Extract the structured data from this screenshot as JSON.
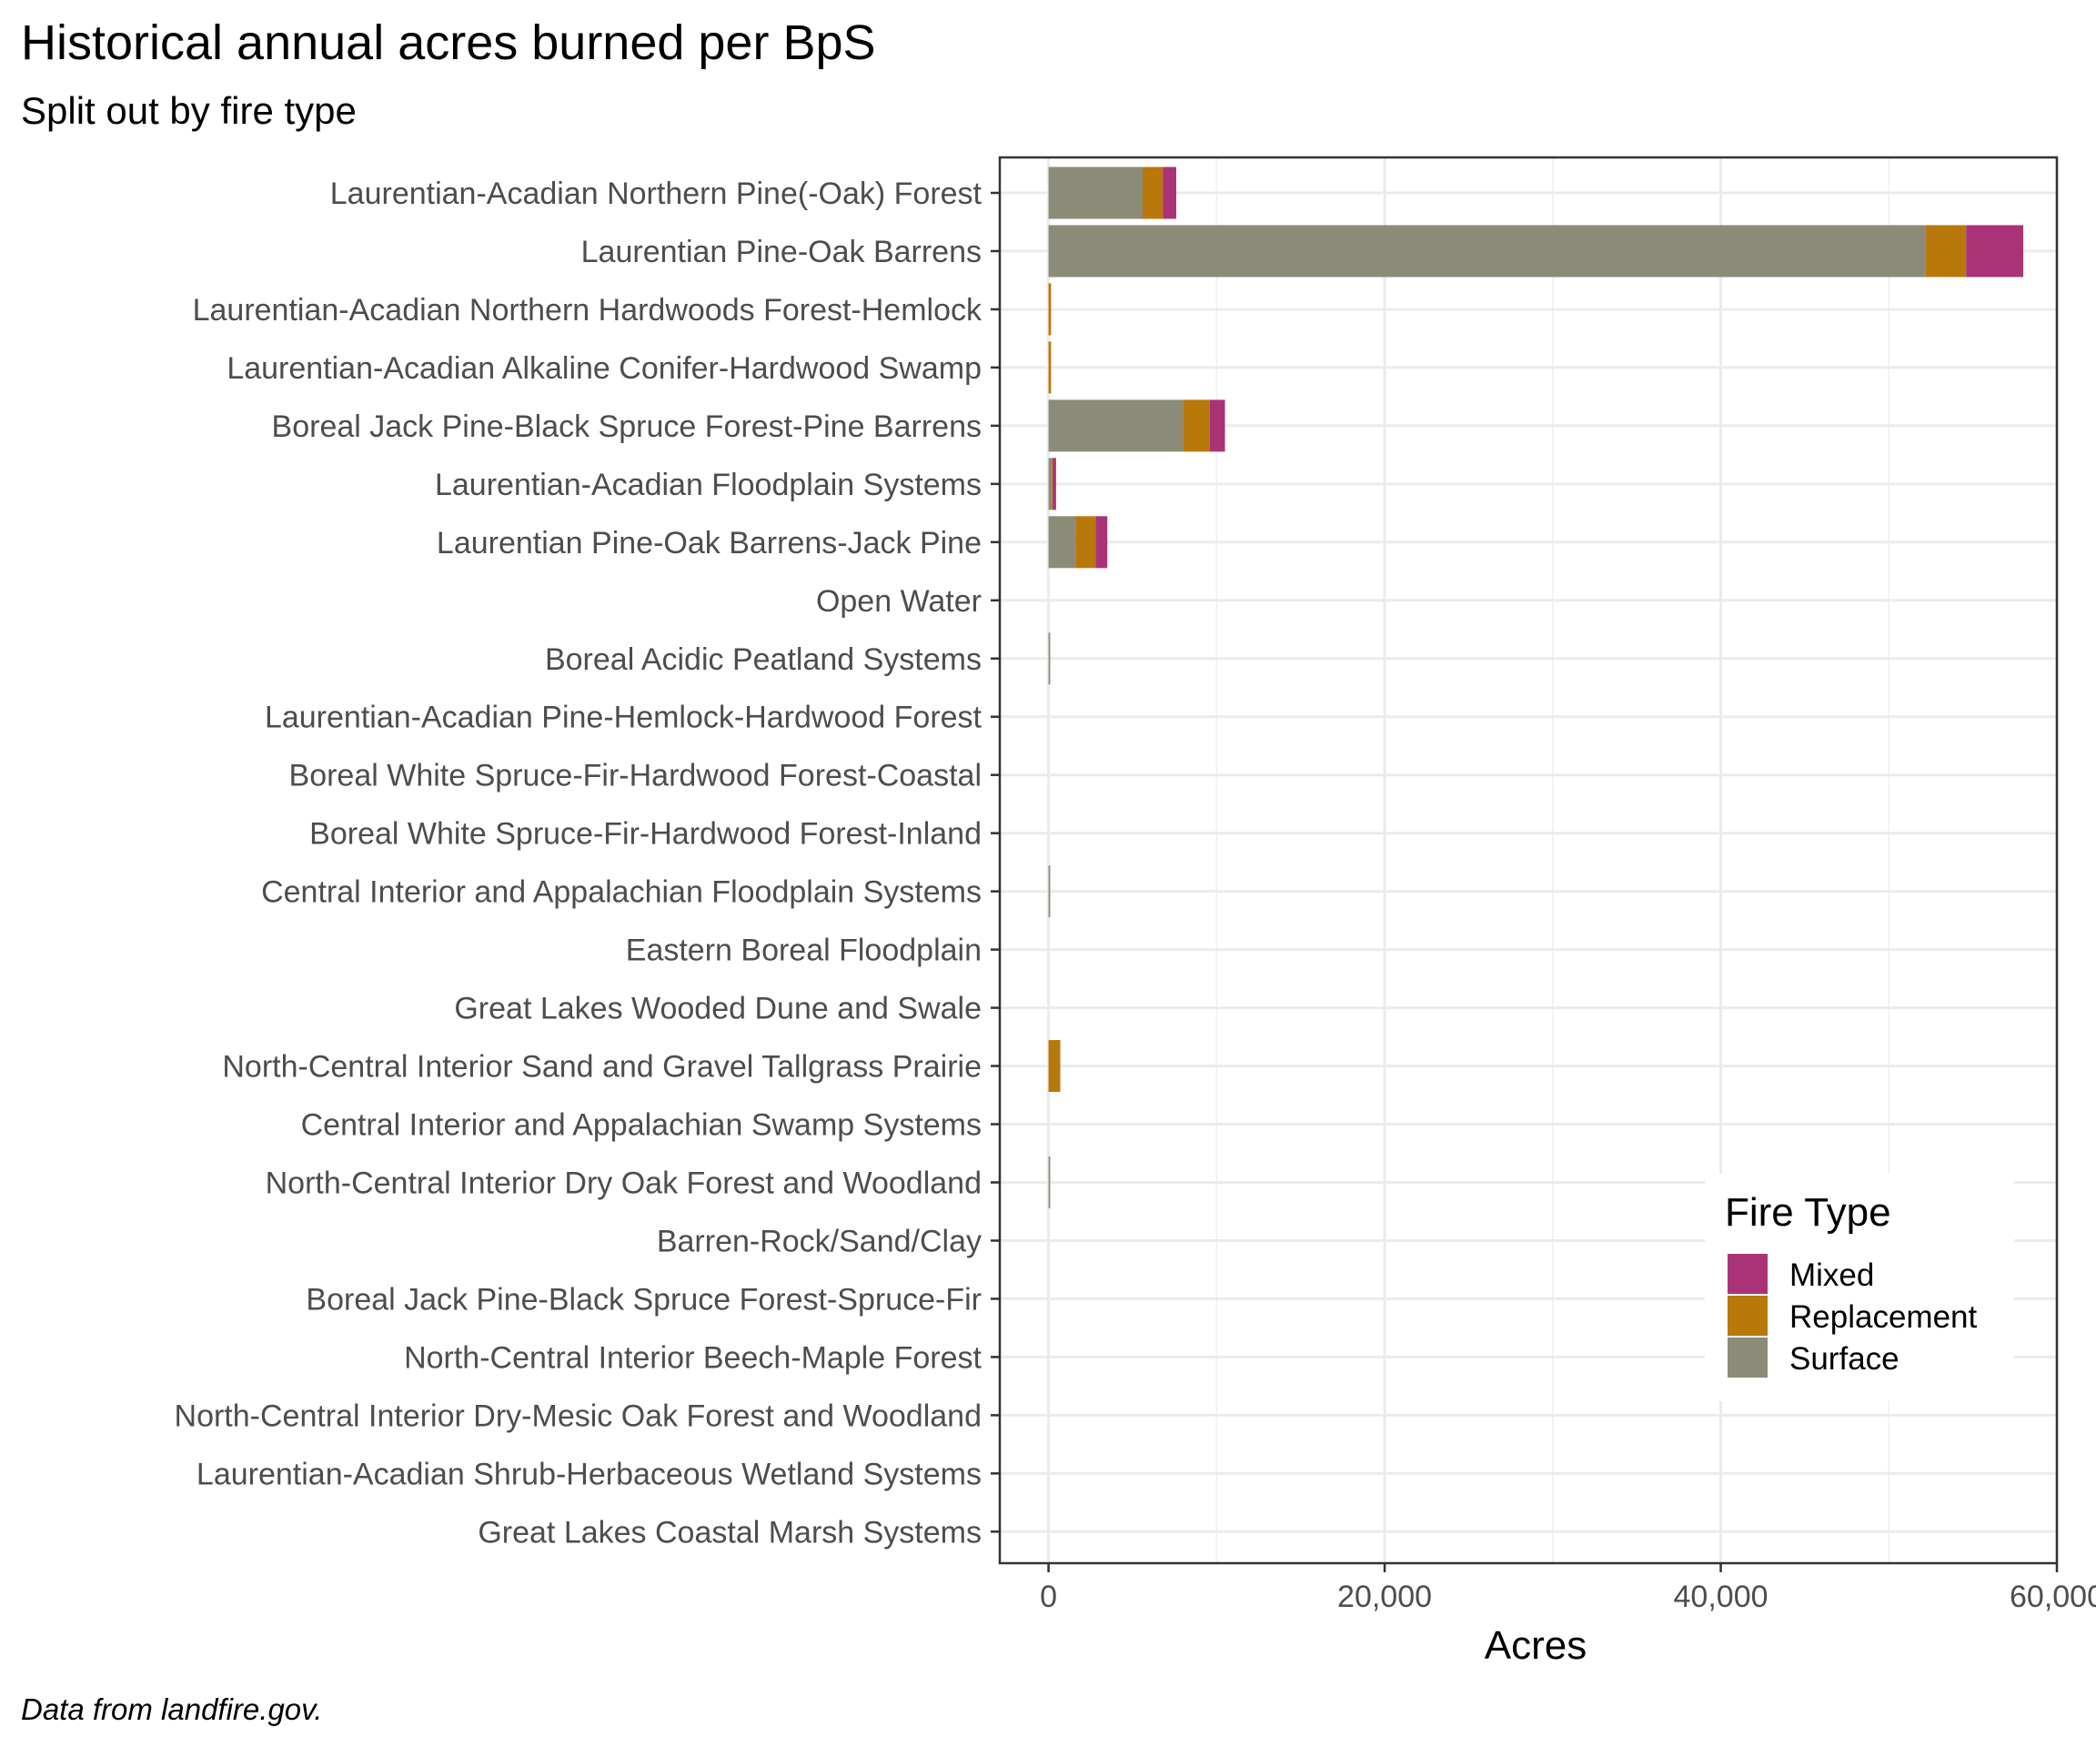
{
  "chart_data": {
    "type": "bar",
    "orientation": "horizontal",
    "stacked": true,
    "title": "Historical annual acres burned per BpS",
    "subtitle": "Split out by fire type",
    "caption": "Data from landfire.gov.",
    "xlabel": "Acres",
    "ylabel": "",
    "xlim": [
      -2900,
      60000
    ],
    "x_ticks": [
      0,
      20000,
      40000,
      60000
    ],
    "x_tick_labels": [
      "0",
      "20,000",
      "40,000",
      "60,000"
    ],
    "grid": true,
    "legend": {
      "title": "Fire Type",
      "placement": "bottom-right"
    },
    "categories": [
      "Laurentian-Acadian Northern Pine(-Oak) Forest",
      "Laurentian Pine-Oak Barrens",
      "Laurentian-Acadian Northern Hardwoods Forest-Hemlock",
      "Laurentian-Acadian Alkaline Conifer-Hardwood Swamp",
      "Boreal Jack Pine-Black Spruce Forest-Pine Barrens",
      "Laurentian-Acadian Floodplain Systems",
      "Laurentian Pine-Oak Barrens-Jack Pine",
      "Open Water",
      "Boreal Acidic Peatland Systems",
      "Laurentian-Acadian Pine-Hemlock-Hardwood Forest",
      "Boreal White Spruce-Fir-Hardwood Forest-Coastal",
      "Boreal White Spruce-Fir-Hardwood Forest-Inland",
      "Central Interior and Appalachian Floodplain Systems",
      "Eastern Boreal Floodplain",
      "Great Lakes Wooded Dune and Swale",
      "North-Central Interior Sand and Gravel Tallgrass Prairie",
      "Central Interior and Appalachian Swamp Systems",
      "North-Central Interior Dry Oak Forest and Woodland",
      "Barren-Rock/Sand/Clay",
      "Boreal Jack Pine-Black Spruce Forest-Spruce-Fir",
      "North-Central Interior Beech-Maple Forest",
      "North-Central Interior Dry-Mesic Oak Forest and Woodland",
      "Laurentian-Acadian Shrub-Herbaceous Wetland Systems",
      "Great Lakes Coastal Marsh Systems"
    ],
    "series": [
      {
        "name": "Surface",
        "color": "#8b8b78",
        "values": [
          5600,
          52200,
          0,
          0,
          8000,
          200,
          1600,
          0,
          100,
          0,
          0,
          0,
          100,
          0,
          0,
          0,
          0,
          100,
          0,
          0,
          0,
          0,
          0,
          0
        ]
      },
      {
        "name": "Replacement",
        "color": "#b8780a",
        "values": [
          1200,
          2400,
          150,
          150,
          1600,
          50,
          1200,
          0,
          0,
          0,
          0,
          0,
          0,
          0,
          0,
          700,
          0,
          0,
          0,
          0,
          0,
          0,
          0,
          0
        ]
      },
      {
        "name": "Mixed",
        "color": "#aa3377",
        "values": [
          800,
          3400,
          0,
          0,
          900,
          200,
          700,
          0,
          0,
          0,
          0,
          0,
          0,
          0,
          0,
          0,
          0,
          0,
          0,
          0,
          0,
          0,
          0,
          0
        ]
      }
    ],
    "legend_order": [
      "Mixed",
      "Replacement",
      "Surface"
    ]
  }
}
